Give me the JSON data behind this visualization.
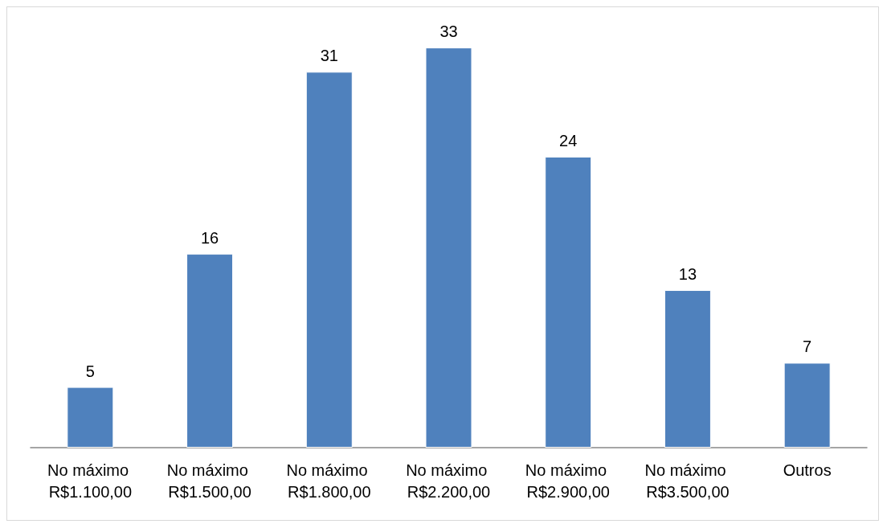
{
  "chart_data": {
    "type": "bar",
    "categories": [
      "No máximo R$1.100,00",
      "No máximo R$1.500,00",
      "No máximo R$1.800,00",
      "No máximo R$2.200,00",
      "No máximo R$2.900,00",
      "No máximo R$3.500,00",
      "Outros"
    ],
    "values": [
      5,
      16,
      31,
      33,
      24,
      13,
      7
    ],
    "color": "#4f81bd",
    "data_labels": true
  }
}
